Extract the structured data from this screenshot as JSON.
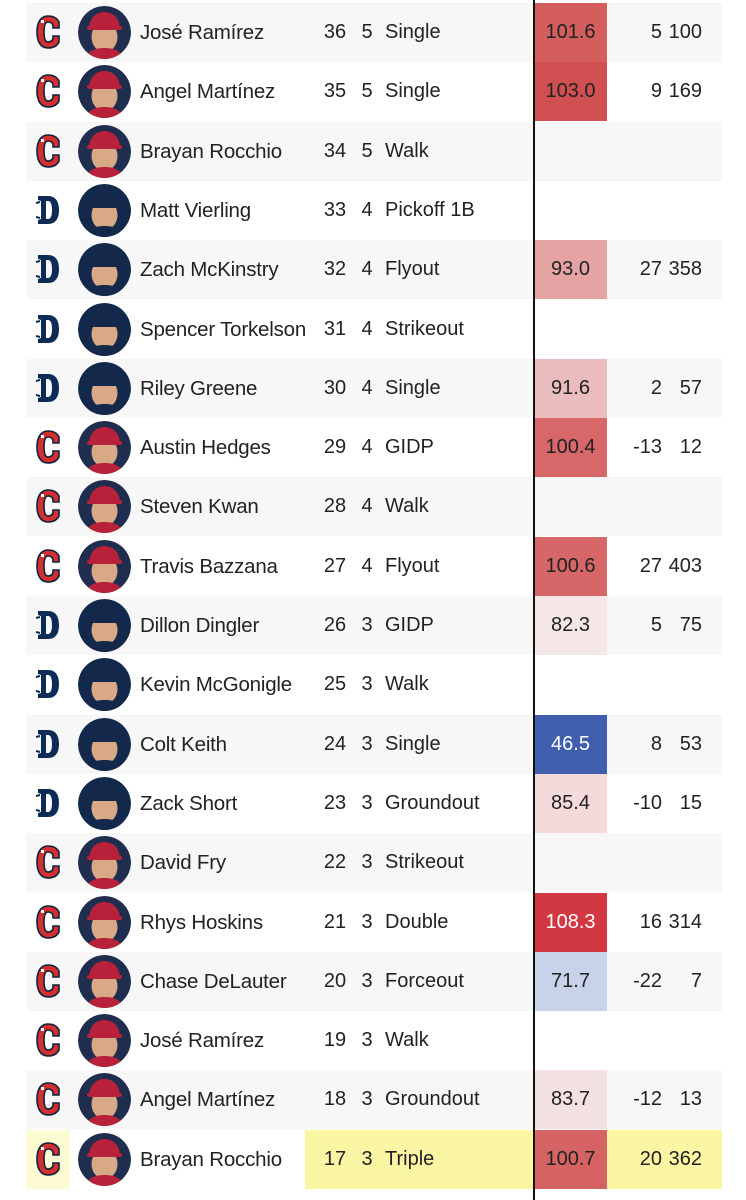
{
  "colors": {
    "guardians_red": "#d32f2f",
    "guardians_navy": "#0c2340",
    "tigers_navy": "#0c2c56",
    "highlight_yellow": "#fbf6a3"
  },
  "rows": [
    {
      "team": "CLE",
      "logo_icon": "guardians-c-icon",
      "name": "José Ramírez",
      "pa": "36",
      "inning": "5",
      "result": "Single",
      "ev": "101.6",
      "ev_color": "#d45e5e",
      "la": "5",
      "dist": "100"
    },
    {
      "team": "CLE",
      "logo_icon": "guardians-c-icon",
      "name": "Angel Martínez",
      "pa": "35",
      "inning": "5",
      "result": "Single",
      "ev": "103.0",
      "ev_color": "#d04f50",
      "la": "9",
      "dist": "169"
    },
    {
      "team": "CLE",
      "logo_icon": "guardians-c-icon",
      "name": "Brayan Rocchio",
      "pa": "34",
      "inning": "5",
      "result": "Walk",
      "ev": "",
      "ev_color": "",
      "la": "",
      "dist": ""
    },
    {
      "team": "DET",
      "logo_icon": "tigers-d-icon",
      "name": "Matt Vierling",
      "pa": "33",
      "inning": "4",
      "result": "Pickoff 1B",
      "ev": "",
      "ev_color": "",
      "la": "",
      "dist": ""
    },
    {
      "team": "DET",
      "logo_icon": "tigers-d-icon",
      "name": "Zach McKinstry",
      "pa": "32",
      "inning": "4",
      "result": "Flyout",
      "ev": "93.0",
      "ev_color": "#e5a3a4",
      "la": "27",
      "dist": "358"
    },
    {
      "team": "DET",
      "logo_icon": "tigers-d-icon",
      "name": "Spencer Torkelson",
      "pa": "31",
      "inning": "4",
      "result": "Strikeout",
      "ev": "",
      "ev_color": "",
      "la": "",
      "dist": ""
    },
    {
      "team": "DET",
      "logo_icon": "tigers-d-icon",
      "name": "Riley Greene",
      "pa": "30",
      "inning": "4",
      "result": "Single",
      "ev": "91.6",
      "ev_color": "#ebbcbe",
      "la": "2",
      "dist": "57"
    },
    {
      "team": "CLE",
      "logo_icon": "guardians-c-icon",
      "name": "Austin Hedges",
      "pa": "29",
      "inning": "4",
      "result": "GIDP",
      "ev": "100.4",
      "ev_color": "#d76769",
      "la": "-13",
      "dist": "12"
    },
    {
      "team": "CLE",
      "logo_icon": "guardians-c-icon",
      "name": "Steven Kwan",
      "pa": "28",
      "inning": "4",
      "result": "Walk",
      "ev": "",
      "ev_color": "",
      "la": "",
      "dist": ""
    },
    {
      "team": "CLE",
      "logo_icon": "guardians-c-icon",
      "name": "Travis Bazzana",
      "pa": "27",
      "inning": "4",
      "result": "Flyout",
      "ev": "100.6",
      "ev_color": "#d66667",
      "la": "27",
      "dist": "403"
    },
    {
      "team": "DET",
      "logo_icon": "tigers-d-icon",
      "name": "Dillon Dingler",
      "pa": "26",
      "inning": "3",
      "result": "GIDP",
      "ev": "82.3",
      "ev_color": "#f5e6e7",
      "la": "5",
      "dist": "75"
    },
    {
      "team": "DET",
      "logo_icon": "tigers-d-icon",
      "name": "Kevin McGonigle",
      "pa": "25",
      "inning": "3",
      "result": "Walk",
      "ev": "",
      "ev_color": "",
      "la": "",
      "dist": ""
    },
    {
      "team": "DET",
      "logo_icon": "tigers-d-icon",
      "name": "Colt Keith",
      "pa": "24",
      "inning": "3",
      "result": "Single",
      "ev": "46.5",
      "ev_color": "#3f5fae",
      "la": "8",
      "dist": "53",
      "ev_text_color": "#ffffff"
    },
    {
      "team": "DET",
      "logo_icon": "tigers-d-icon",
      "name": "Zack Short",
      "pa": "23",
      "inning": "3",
      "result": "Groundout",
      "ev": "85.4",
      "ev_color": "#f4dadb",
      "la": "-10",
      "dist": "15"
    },
    {
      "team": "CLE",
      "logo_icon": "guardians-c-icon",
      "name": "David Fry",
      "pa": "22",
      "inning": "3",
      "result": "Strikeout",
      "ev": "",
      "ev_color": "",
      "la": "",
      "dist": ""
    },
    {
      "team": "CLE",
      "logo_icon": "guardians-c-icon",
      "name": "Rhys Hoskins",
      "pa": "21",
      "inning": "3",
      "result": "Double",
      "ev": "108.3",
      "ev_color": "#d13841",
      "la": "16",
      "dist": "314",
      "ev_text_color": "#ffffff"
    },
    {
      "team": "CLE",
      "logo_icon": "guardians-c-icon",
      "name": "Chase DeLauter",
      "pa": "20",
      "inning": "3",
      "result": "Forceout",
      "ev": "71.7",
      "ev_color": "#c8d2e8",
      "la": "-22",
      "dist": "7"
    },
    {
      "team": "CLE",
      "logo_icon": "guardians-c-icon",
      "name": "José Ramírez",
      "pa": "19",
      "inning": "3",
      "result": "Walk",
      "ev": "",
      "ev_color": "",
      "la": "",
      "dist": ""
    },
    {
      "team": "CLE",
      "logo_icon": "guardians-c-icon",
      "name": "Angel Martínez",
      "pa": "18",
      "inning": "3",
      "result": "Groundout",
      "ev": "83.7",
      "ev_color": "#f4e1e2",
      "la": "-12",
      "dist": "13"
    },
    {
      "team": "CLE",
      "logo_icon": "guardians-c-icon",
      "name": "Brayan Rocchio",
      "pa": "17",
      "inning": "3",
      "result": "Triple",
      "ev": "100.7",
      "ev_color": "#d56364",
      "la": "20",
      "dist": "362",
      "highlight": true
    }
  ]
}
